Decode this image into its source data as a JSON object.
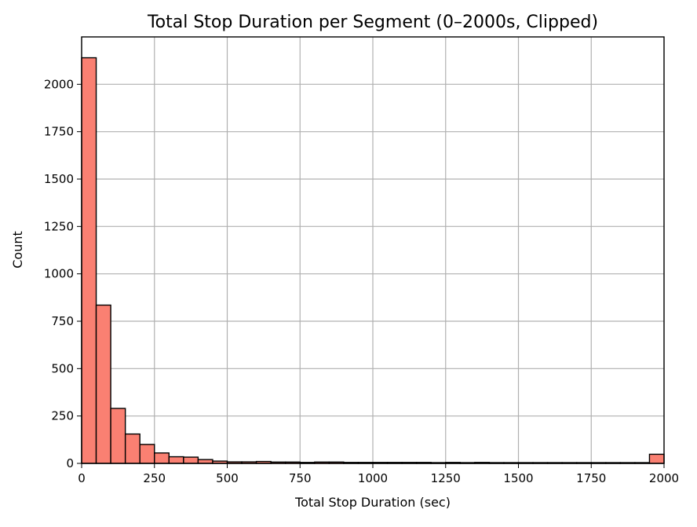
{
  "chart_data": {
    "type": "bar",
    "title": "Total Stop Duration per Segment (0–2000s, Clipped)",
    "xlabel": "Total Stop Duration (sec)",
    "ylabel": "Count",
    "xlim": [
      0,
      2000
    ],
    "ylim": [
      0,
      2250
    ],
    "xticks": [
      0,
      250,
      500,
      750,
      1000,
      1250,
      1500,
      1750,
      2000
    ],
    "yticks": [
      0,
      250,
      500,
      750,
      1000,
      1250,
      1500,
      1750,
      2000
    ],
    "xtick_labels": [
      "0",
      "250",
      "500",
      "750",
      "1000",
      "1250",
      "1500",
      "1750",
      "2000"
    ],
    "ytick_labels": [
      "0",
      "250",
      "500",
      "750",
      "1000",
      "1250",
      "1500",
      "1750",
      "2000"
    ],
    "bin_width": 50,
    "bin_edges_start": 0,
    "values": [
      2140,
      835,
      290,
      155,
      100,
      55,
      35,
      33,
      20,
      12,
      8,
      8,
      10,
      7,
      7,
      5,
      7,
      7,
      5,
      5,
      5,
      5,
      5,
      5,
      4,
      5,
      4,
      5,
      4,
      4,
      4,
      4,
      4,
      4,
      4,
      4,
      4,
      4,
      4,
      48
    ],
    "grid": true,
    "colors": {
      "bar_fill": "#fa8072",
      "bar_edge": "#000000",
      "grid": "#b0b0b0"
    }
  }
}
